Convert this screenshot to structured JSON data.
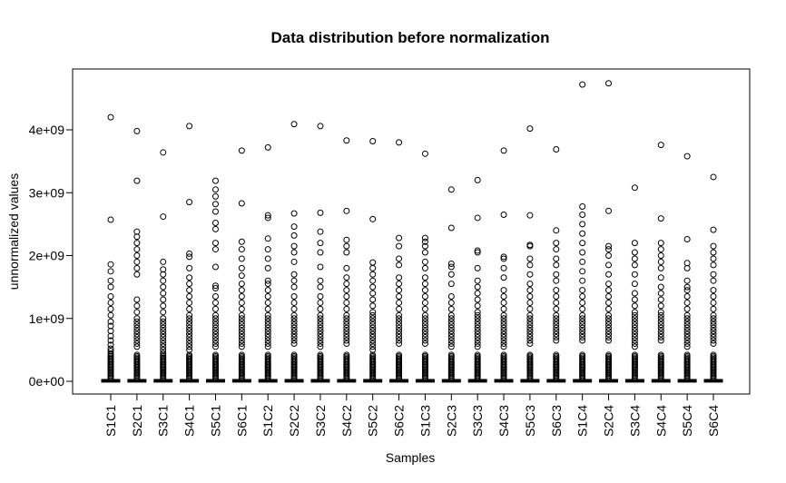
{
  "chart_data": {
    "type": "boxplot",
    "title": "Data distribution before normalization",
    "xlabel": "Samples",
    "ylabel": "unnormalized values",
    "ylim": [
      -100000000,
      4850000000
    ],
    "y_ticks": [
      {
        "value": 0,
        "label": "0e+00"
      },
      {
        "value": 1000000000,
        "label": "1e+09"
      },
      {
        "value": 2000000000,
        "label": "2e+09"
      },
      {
        "value": 3000000000,
        "label": "3e+09"
      },
      {
        "value": 4000000000,
        "label": "4e+09"
      }
    ],
    "grid": false,
    "legend": "none",
    "categories": [
      "S1C1",
      "S2C1",
      "S3C1",
      "S4C1",
      "S5C1",
      "S6C1",
      "S1C2",
      "S2C2",
      "S3C2",
      "S4C2",
      "S5C2",
      "S6C2",
      "S1C3",
      "S2C3",
      "S3C3",
      "S4C3",
      "S5C3",
      "S6C3",
      "S1C4",
      "S2C4",
      "S3C4",
      "S4C4",
      "S5C4",
      "S6C4"
    ],
    "series": [
      {
        "box": [
          0,
          2000000,
          6000000,
          15000000,
          25000000
        ],
        "outliers": [
          4200000000,
          2570000000,
          1860000000,
          1750000000,
          1600000000,
          1500000000,
          1350000000,
          1250000000,
          1150000000,
          1050000000,
          950000000,
          880000000,
          800000000,
          720000000,
          650000000,
          580000000,
          520000000,
          480000000,
          440000000
        ]
      },
      {
        "box": [
          0,
          2000000,
          6000000,
          15000000,
          25000000
        ],
        "outliers": [
          3980000000,
          3190000000,
          2380000000,
          2300000000,
          2200000000,
          2100000000,
          2000000000,
          1900000000,
          1800000000,
          1700000000,
          1300000000,
          1200000000,
          1100000000,
          1000000000,
          950000000,
          900000000,
          850000000,
          800000000,
          750000000,
          700000000,
          650000000,
          600000000,
          550000000
        ]
      },
      {
        "box": [
          0,
          2000000,
          6000000,
          15000000,
          25000000
        ],
        "outliers": [
          3640000000,
          2620000000,
          1900000000,
          1780000000,
          1700000000,
          1600000000,
          1500000000,
          1400000000,
          1300000000,
          1200000000,
          1100000000,
          1000000000,
          950000000,
          900000000,
          850000000,
          800000000,
          750000000,
          700000000,
          650000000,
          600000000,
          550000000,
          500000000,
          450000000
        ]
      },
      {
        "box": [
          0,
          2000000,
          6000000,
          15000000,
          25000000
        ],
        "outliers": [
          4060000000,
          2850000000,
          2030000000,
          1980000000,
          1800000000,
          1650000000,
          1550000000,
          1450000000,
          1350000000,
          1250000000,
          1150000000,
          1050000000,
          1000000000,
          950000000,
          900000000,
          850000000,
          800000000,
          750000000,
          700000000,
          650000000,
          600000000,
          550000000,
          500000000
        ]
      },
      {
        "box": [
          0,
          2000000,
          6000000,
          15000000,
          25000000
        ],
        "outliers": [
          3190000000,
          3050000000,
          2940000000,
          2820000000,
          2700000000,
          2520000000,
          2420000000,
          2200000000,
          2100000000,
          1820000000,
          1520000000,
          1480000000,
          1350000000,
          1250000000,
          1150000000,
          1050000000,
          1000000000,
          950000000,
          900000000,
          850000000,
          800000000,
          750000000,
          700000000,
          650000000,
          600000000,
          550000000
        ]
      },
      {
        "box": [
          0,
          2000000,
          6000000,
          15000000,
          25000000
        ],
        "outliers": [
          3670000000,
          2830000000,
          2220000000,
          2100000000,
          1950000000,
          1800000000,
          1680000000,
          1550000000,
          1450000000,
          1350000000,
          1250000000,
          1150000000,
          1050000000,
          1000000000,
          950000000,
          900000000,
          850000000,
          800000000,
          750000000,
          700000000,
          650000000,
          600000000,
          550000000
        ]
      },
      {
        "box": [
          0,
          2000000,
          6000000,
          15000000,
          25000000
        ],
        "outliers": [
          3720000000,
          2640000000,
          2600000000,
          2270000000,
          2100000000,
          1950000000,
          1800000000,
          1600000000,
          1550000000,
          1450000000,
          1350000000,
          1250000000,
          1150000000,
          1050000000,
          1000000000,
          950000000,
          900000000,
          850000000,
          800000000,
          750000000,
          700000000,
          650000000,
          600000000,
          550000000
        ]
      },
      {
        "box": [
          0,
          2000000,
          6000000,
          15000000,
          25000000
        ],
        "outliers": [
          4090000000,
          2670000000,
          2460000000,
          2320000000,
          2150000000,
          2050000000,
          1900000000,
          1700000000,
          1600000000,
          1500000000,
          1350000000,
          1250000000,
          1150000000,
          1050000000,
          1000000000,
          950000000,
          900000000,
          850000000,
          800000000,
          750000000,
          700000000,
          650000000,
          600000000
        ]
      },
      {
        "box": [
          0,
          2000000,
          6000000,
          15000000,
          25000000
        ],
        "outliers": [
          4060000000,
          2680000000,
          2380000000,
          2200000000,
          2050000000,
          1820000000,
          1600000000,
          1500000000,
          1350000000,
          1250000000,
          1150000000,
          1050000000,
          1000000000,
          950000000,
          900000000,
          850000000,
          800000000,
          750000000,
          700000000,
          650000000,
          600000000,
          550000000
        ]
      },
      {
        "box": [
          0,
          2000000,
          6000000,
          15000000,
          25000000
        ],
        "outliers": [
          3830000000,
          2710000000,
          2250000000,
          2150000000,
          2050000000,
          1800000000,
          1650000000,
          1550000000,
          1450000000,
          1350000000,
          1250000000,
          1150000000,
          1050000000,
          1000000000,
          950000000,
          900000000,
          850000000,
          800000000,
          750000000,
          700000000,
          650000000,
          600000000
        ]
      },
      {
        "box": [
          0,
          2000000,
          6000000,
          15000000,
          25000000
        ],
        "outliers": [
          3820000000,
          2580000000,
          1890000000,
          1800000000,
          1700000000,
          1600000000,
          1500000000,
          1400000000,
          1300000000,
          1200000000,
          1100000000,
          1050000000,
          1000000000,
          950000000,
          900000000,
          850000000,
          800000000,
          750000000,
          700000000,
          650000000,
          600000000,
          550000000,
          500000000
        ]
      },
      {
        "box": [
          0,
          2000000,
          6000000,
          15000000,
          25000000
        ],
        "outliers": [
          3800000000,
          2280000000,
          2150000000,
          1950000000,
          1850000000,
          1650000000,
          1550000000,
          1450000000,
          1350000000,
          1250000000,
          1150000000,
          1050000000,
          1000000000,
          950000000,
          900000000,
          850000000,
          800000000,
          750000000,
          700000000,
          650000000,
          600000000
        ]
      },
      {
        "box": [
          0,
          2000000,
          6000000,
          15000000,
          25000000
        ],
        "outliers": [
          3620000000,
          2280000000,
          2220000000,
          2150000000,
          2050000000,
          1900000000,
          1800000000,
          1650000000,
          1550000000,
          1450000000,
          1350000000,
          1250000000,
          1150000000,
          1050000000,
          1000000000,
          950000000,
          900000000,
          850000000,
          800000000,
          750000000,
          700000000,
          650000000,
          600000000
        ]
      },
      {
        "box": [
          0,
          2000000,
          6000000,
          15000000,
          25000000
        ],
        "outliers": [
          3050000000,
          2440000000,
          1870000000,
          1820000000,
          1700000000,
          1550000000,
          1350000000,
          1250000000,
          1150000000,
          1050000000,
          1000000000,
          950000000,
          900000000,
          850000000,
          800000000,
          750000000,
          700000000,
          650000000,
          600000000,
          550000000
        ]
      },
      {
        "box": [
          0,
          2000000,
          6000000,
          15000000,
          25000000
        ],
        "outliers": [
          3200000000,
          2600000000,
          2080000000,
          2050000000,
          1800000000,
          1600000000,
          1500000000,
          1400000000,
          1300000000,
          1200000000,
          1100000000,
          1050000000,
          1000000000,
          950000000,
          900000000,
          850000000,
          800000000,
          750000000,
          700000000,
          650000000,
          600000000,
          550000000
        ]
      },
      {
        "box": [
          0,
          2000000,
          6000000,
          15000000,
          25000000
        ],
        "outliers": [
          3670000000,
          2650000000,
          1980000000,
          1950000000,
          1800000000,
          1650000000,
          1450000000,
          1350000000,
          1250000000,
          1150000000,
          1050000000,
          1000000000,
          950000000,
          900000000,
          850000000,
          800000000,
          750000000,
          700000000,
          650000000,
          600000000,
          550000000
        ]
      },
      {
        "box": [
          0,
          2000000,
          6000000,
          15000000,
          25000000
        ],
        "outliers": [
          4020000000,
          2640000000,
          2170000000,
          2150000000,
          1950000000,
          1850000000,
          1700000000,
          1550000000,
          1450000000,
          1350000000,
          1250000000,
          1150000000,
          1050000000,
          1000000000,
          950000000,
          900000000,
          850000000,
          800000000,
          750000000,
          700000000,
          650000000,
          600000000
        ]
      },
      {
        "box": [
          0,
          2000000,
          6000000,
          15000000,
          25000000
        ],
        "outliers": [
          3690000000,
          2400000000,
          2200000000,
          2100000000,
          1950000000,
          1850000000,
          1700000000,
          1600000000,
          1450000000,
          1350000000,
          1250000000,
          1150000000,
          1050000000,
          1000000000,
          950000000,
          900000000,
          850000000,
          800000000,
          750000000,
          700000000,
          650000000
        ]
      },
      {
        "box": [
          0,
          2000000,
          6000000,
          15000000,
          25000000
        ],
        "outliers": [
          4720000000,
          2780000000,
          2650000000,
          2500000000,
          2350000000,
          2200000000,
          2050000000,
          1900000000,
          1750000000,
          1600000000,
          1450000000,
          1350000000,
          1250000000,
          1150000000,
          1050000000,
          1000000000,
          950000000,
          900000000,
          850000000,
          800000000,
          750000000,
          700000000,
          650000000
        ]
      },
      {
        "box": [
          0,
          2000000,
          6000000,
          15000000,
          25000000
        ],
        "outliers": [
          4740000000,
          2710000000,
          2150000000,
          2100000000,
          2000000000,
          1850000000,
          1700000000,
          1550000000,
          1450000000,
          1350000000,
          1250000000,
          1150000000,
          1050000000,
          1000000000,
          950000000,
          900000000,
          850000000,
          800000000,
          750000000,
          700000000,
          650000000
        ]
      },
      {
        "box": [
          0,
          2000000,
          6000000,
          15000000,
          25000000
        ],
        "outliers": [
          3080000000,
          2200000000,
          2050000000,
          1950000000,
          1850000000,
          1700000000,
          1550000000,
          1400000000,
          1300000000,
          1200000000,
          1100000000,
          1050000000,
          1000000000,
          950000000,
          900000000,
          850000000,
          800000000,
          750000000,
          700000000,
          650000000,
          600000000,
          550000000
        ]
      },
      {
        "box": [
          0,
          2000000,
          6000000,
          15000000,
          25000000
        ],
        "outliers": [
          3760000000,
          2590000000,
          2200000000,
          2100000000,
          2000000000,
          1900000000,
          1800000000,
          1650000000,
          1500000000,
          1400000000,
          1300000000,
          1200000000,
          1100000000,
          1050000000,
          1000000000,
          950000000,
          900000000,
          850000000,
          800000000,
          750000000,
          700000000,
          650000000
        ]
      },
      {
        "box": [
          0,
          2000000,
          6000000,
          15000000,
          25000000
        ],
        "outliers": [
          3580000000,
          2260000000,
          1880000000,
          1800000000,
          1600000000,
          1500000000,
          1450000000,
          1350000000,
          1250000000,
          1150000000,
          1050000000,
          1000000000,
          950000000,
          900000000,
          850000000,
          800000000,
          750000000,
          700000000,
          650000000,
          600000000,
          550000000
        ]
      },
      {
        "box": [
          0,
          2000000,
          6000000,
          15000000,
          25000000
        ],
        "outliers": [
          3250000000,
          2410000000,
          2150000000,
          2050000000,
          1950000000,
          1850000000,
          1700000000,
          1600000000,
          1450000000,
          1350000000,
          1250000000,
          1150000000,
          1050000000,
          1000000000,
          950000000,
          900000000,
          850000000,
          800000000,
          750000000,
          700000000,
          650000000,
          600000000
        ]
      }
    ]
  }
}
